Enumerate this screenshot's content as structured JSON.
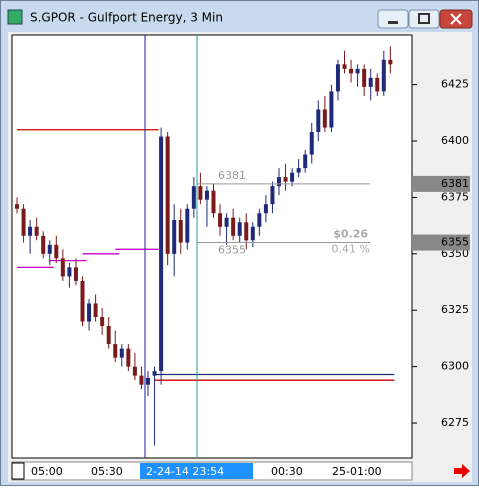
{
  "window_title": "S.GPOR - Gulfport Energy, 3 Min",
  "chart_data": {
    "type": "candlestick",
    "up_color": "#1f2a7a",
    "down_color": "#7a1a1a",
    "ylim": [
      6259.5,
      6447
    ],
    "yticks": [
      6275,
      6300,
      6325,
      6350,
      6375,
      6400,
      6425
    ],
    "x_labels": [
      "05:00",
      "05:30",
      "2-24-14 23:54",
      "00:30",
      "25-01:00"
    ],
    "candles": [
      [
        6372,
        6375,
        6368,
        6370
      ],
      [
        6370,
        6372,
        6355,
        6358
      ],
      [
        6358,
        6365,
        6350,
        6362
      ],
      [
        6362,
        6366,
        6356,
        6358
      ],
      [
        6358,
        6360,
        6348,
        6350
      ],
      [
        6350,
        6356,
        6345,
        6354
      ],
      [
        6354,
        6358,
        6346,
        6348
      ],
      [
        6348,
        6352,
        6338,
        6340
      ],
      [
        6340,
        6346,
        6335,
        6344
      ],
      [
        6344,
        6348,
        6336,
        6338
      ],
      [
        6338,
        6340,
        6318,
        6320
      ],
      [
        6320,
        6330,
        6316,
        6328
      ],
      [
        6328,
        6332,
        6320,
        6322
      ],
      [
        6322,
        6326,
        6314,
        6318
      ],
      [
        6318,
        6322,
        6308,
        6310
      ],
      [
        6310,
        6316,
        6302,
        6304
      ],
      [
        6304,
        6310,
        6300,
        6308
      ],
      [
        6308,
        6310,
        6298,
        6300
      ],
      [
        6300,
        6306,
        6294,
        6296
      ],
      [
        6296,
        6300,
        6290,
        6292
      ],
      [
        6292,
        6298,
        6287,
        6295
      ],
      [
        6296,
        6300,
        6265,
        6298
      ],
      [
        6298,
        6406,
        6292,
        6402
      ],
      [
        6402,
        6404,
        6345,
        6350
      ],
      [
        6350,
        6372,
        6340,
        6365
      ],
      [
        6365,
        6370,
        6350,
        6355
      ],
      [
        6355,
        6372,
        6352,
        6370
      ],
      [
        6370,
        6384,
        6366,
        6380
      ],
      [
        6380,
        6386,
        6372,
        6374
      ],
      [
        6374,
        6380,
        6362,
        6378
      ],
      [
        6378,
        6381,
        6366,
        6368
      ],
      [
        6368,
        6372,
        6358,
        6362
      ],
      [
        6362,
        6368,
        6354,
        6366
      ],
      [
        6366,
        6370,
        6356,
        6358
      ],
      [
        6358,
        6366,
        6355,
        6364
      ],
      [
        6364,
        6368,
        6352,
        6356
      ],
      [
        6356,
        6364,
        6353,
        6362
      ],
      [
        6362,
        6370,
        6358,
        6368
      ],
      [
        6368,
        6376,
        6364,
        6372
      ],
      [
        6372,
        6382,
        6368,
        6380
      ],
      [
        6380,
        6388,
        6376,
        6384
      ],
      [
        6384,
        6390,
        6378,
        6382
      ],
      [
        6382,
        6388,
        6380,
        6386
      ],
      [
        6386,
        6392,
        6384,
        6388
      ],
      [
        6388,
        6396,
        6386,
        6394
      ],
      [
        6394,
        6408,
        6390,
        6404
      ],
      [
        6404,
        6418,
        6400,
        6414
      ],
      [
        6414,
        6420,
        6404,
        6406
      ],
      [
        6406,
        6425,
        6404,
        6422
      ],
      [
        6422,
        6436,
        6418,
        6434
      ],
      [
        6434,
        6440,
        6430,
        6432
      ],
      [
        6432,
        6436,
        6426,
        6430
      ],
      [
        6430,
        6434,
        6424,
        6432
      ],
      [
        6432,
        6434,
        6420,
        6424
      ],
      [
        6424,
        6432,
        6418,
        6428
      ],
      [
        6428,
        6430,
        6420,
        6422
      ],
      [
        6422,
        6440,
        6420,
        6436
      ],
      [
        6436,
        6442,
        6430,
        6434
      ]
    ],
    "levels": [
      {
        "color": "#cc0000",
        "start": 0,
        "end": 21,
        "value": 6405
      },
      {
        "color": "#cc0000",
        "start": 21,
        "end": 57,
        "value": 6294
      },
      {
        "color": "#1f2a7a",
        "start": 21,
        "end": 57,
        "value": 6296.5
      },
      {
        "color": "#cc00cc",
        "start": 0,
        "end": 5,
        "value": 6344
      },
      {
        "color": "#cc00cc",
        "start": 5,
        "end": 10,
        "value": 6347
      },
      {
        "color": "#cc00cc",
        "start": 10,
        "end": 15,
        "value": 6350
      },
      {
        "color": "#cc00cc",
        "start": 15,
        "end": 21,
        "value": 6352
      }
    ],
    "measure": {
      "high": 6381,
      "low": 6355,
      "change": "$0.26",
      "percent": "0.41 %"
    }
  }
}
